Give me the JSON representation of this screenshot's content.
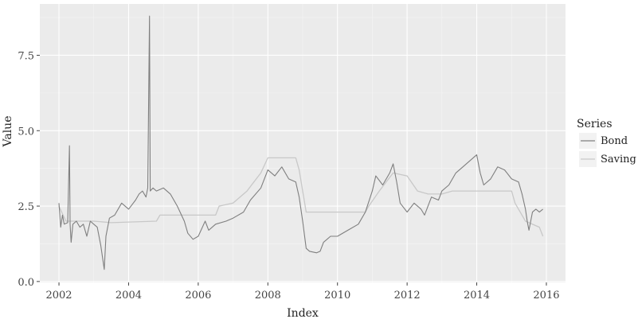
{
  "chart_data": {
    "type": "line",
    "xlabel": "Index",
    "ylabel": "Value",
    "xlim": [
      2001.45,
      2016.55
    ],
    "ylim": [
      -0.03,
      9.2
    ],
    "x_ticks": [
      2002,
      2004,
      2006,
      2008,
      2010,
      2012,
      2014,
      2016
    ],
    "x_tick_labels": [
      "2002",
      "2004",
      "2006",
      "2008",
      "2010",
      "2012",
      "2014",
      "2016"
    ],
    "y_ticks": [
      0.0,
      2.5,
      5.0,
      7.5
    ],
    "y_tick_labels": [
      "0.0",
      "2.5",
      "5.0",
      "7.5"
    ],
    "grid": true,
    "legend": {
      "title": "Series",
      "position": "right"
    },
    "series": [
      {
        "name": "Bond",
        "color": "#7f7f7f",
        "points": [
          [
            2002.0,
            2.6
          ],
          [
            2002.05,
            1.8
          ],
          [
            2002.1,
            2.2
          ],
          [
            2002.15,
            1.9
          ],
          [
            2002.25,
            1.95
          ],
          [
            2002.3,
            4.5
          ],
          [
            2002.32,
            1.9
          ],
          [
            2002.35,
            1.3
          ],
          [
            2002.4,
            1.9
          ],
          [
            2002.5,
            2.0
          ],
          [
            2002.6,
            1.8
          ],
          [
            2002.7,
            1.9
          ],
          [
            2002.8,
            1.5
          ],
          [
            2002.9,
            2.0
          ],
          [
            2003.0,
            1.9
          ],
          [
            2003.1,
            1.8
          ],
          [
            2003.2,
            1.2
          ],
          [
            2003.25,
            0.8
          ],
          [
            2003.3,
            0.4
          ],
          [
            2003.35,
            1.5
          ],
          [
            2003.45,
            2.1
          ],
          [
            2003.6,
            2.2
          ],
          [
            2003.8,
            2.6
          ],
          [
            2004.0,
            2.4
          ],
          [
            2004.2,
            2.7
          ],
          [
            2004.3,
            2.9
          ],
          [
            2004.4,
            3.0
          ],
          [
            2004.5,
            2.8
          ],
          [
            2004.55,
            3.1
          ],
          [
            2004.6,
            8.8
          ],
          [
            2004.62,
            3.0
          ],
          [
            2004.7,
            3.1
          ],
          [
            2004.8,
            3.0
          ],
          [
            2005.0,
            3.1
          ],
          [
            2005.2,
            2.9
          ],
          [
            2005.4,
            2.5
          ],
          [
            2005.6,
            2.0
          ],
          [
            2005.7,
            1.6
          ],
          [
            2005.85,
            1.4
          ],
          [
            2006.0,
            1.5
          ],
          [
            2006.2,
            2.0
          ],
          [
            2006.3,
            1.7
          ],
          [
            2006.5,
            1.9
          ],
          [
            2006.8,
            2.0
          ],
          [
            2007.0,
            2.1
          ],
          [
            2007.3,
            2.3
          ],
          [
            2007.5,
            2.7
          ],
          [
            2007.8,
            3.1
          ],
          [
            2008.0,
            3.7
          ],
          [
            2008.2,
            3.5
          ],
          [
            2008.4,
            3.8
          ],
          [
            2008.6,
            3.4
          ],
          [
            2008.8,
            3.3
          ],
          [
            2008.9,
            2.8
          ],
          [
            2009.0,
            2.0
          ],
          [
            2009.1,
            1.1
          ],
          [
            2009.2,
            1.0
          ],
          [
            2009.4,
            0.95
          ],
          [
            2009.5,
            1.0
          ],
          [
            2009.6,
            1.3
          ],
          [
            2009.8,
            1.5
          ],
          [
            2010.0,
            1.5
          ],
          [
            2010.3,
            1.7
          ],
          [
            2010.6,
            1.9
          ],
          [
            2010.8,
            2.3
          ],
          [
            2011.0,
            3.0
          ],
          [
            2011.1,
            3.5
          ],
          [
            2011.3,
            3.2
          ],
          [
            2011.5,
            3.6
          ],
          [
            2011.6,
            3.9
          ],
          [
            2011.7,
            3.3
          ],
          [
            2011.8,
            2.6
          ],
          [
            2012.0,
            2.3
          ],
          [
            2012.2,
            2.6
          ],
          [
            2012.4,
            2.4
          ],
          [
            2012.5,
            2.2
          ],
          [
            2012.7,
            2.8
          ],
          [
            2012.9,
            2.7
          ],
          [
            2013.0,
            3.0
          ],
          [
            2013.2,
            3.2
          ],
          [
            2013.4,
            3.6
          ],
          [
            2013.6,
            3.8
          ],
          [
            2013.8,
            4.0
          ],
          [
            2014.0,
            4.2
          ],
          [
            2014.1,
            3.6
          ],
          [
            2014.2,
            3.2
          ],
          [
            2014.4,
            3.4
          ],
          [
            2014.6,
            3.8
          ],
          [
            2014.8,
            3.7
          ],
          [
            2015.0,
            3.4
          ],
          [
            2015.2,
            3.3
          ],
          [
            2015.3,
            2.9
          ],
          [
            2015.4,
            2.4
          ],
          [
            2015.45,
            2.0
          ],
          [
            2015.5,
            1.7
          ],
          [
            2015.6,
            2.3
          ],
          [
            2015.7,
            2.4
          ],
          [
            2015.8,
            2.3
          ],
          [
            2015.9,
            2.4
          ]
        ]
      },
      {
        "name": "Saving",
        "color": "#c8c8c8",
        "points": [
          [
            2002.0,
            2.5
          ],
          [
            2002.2,
            2.0
          ],
          [
            2003.0,
            2.0
          ],
          [
            2003.5,
            1.95
          ],
          [
            2004.8,
            2.0
          ],
          [
            2004.9,
            2.2
          ],
          [
            2006.5,
            2.2
          ],
          [
            2006.6,
            2.5
          ],
          [
            2007.0,
            2.6
          ],
          [
            2007.2,
            2.8
          ],
          [
            2007.4,
            3.0
          ],
          [
            2007.6,
            3.3
          ],
          [
            2007.8,
            3.6
          ],
          [
            2008.0,
            4.1
          ],
          [
            2008.8,
            4.1
          ],
          [
            2008.9,
            3.7
          ],
          [
            2009.0,
            3.0
          ],
          [
            2009.1,
            2.3
          ],
          [
            2010.8,
            2.3
          ],
          [
            2010.9,
            2.5
          ],
          [
            2011.2,
            3.0
          ],
          [
            2011.4,
            3.3
          ],
          [
            2011.6,
            3.6
          ],
          [
            2012.0,
            3.5
          ],
          [
            2012.3,
            3.0
          ],
          [
            2012.6,
            2.9
          ],
          [
            2013.0,
            2.9
          ],
          [
            2013.3,
            3.0
          ],
          [
            2015.0,
            3.0
          ],
          [
            2015.1,
            2.6
          ],
          [
            2015.4,
            2.0
          ],
          [
            2015.8,
            1.8
          ],
          [
            2015.9,
            1.5
          ]
        ]
      }
    ]
  }
}
